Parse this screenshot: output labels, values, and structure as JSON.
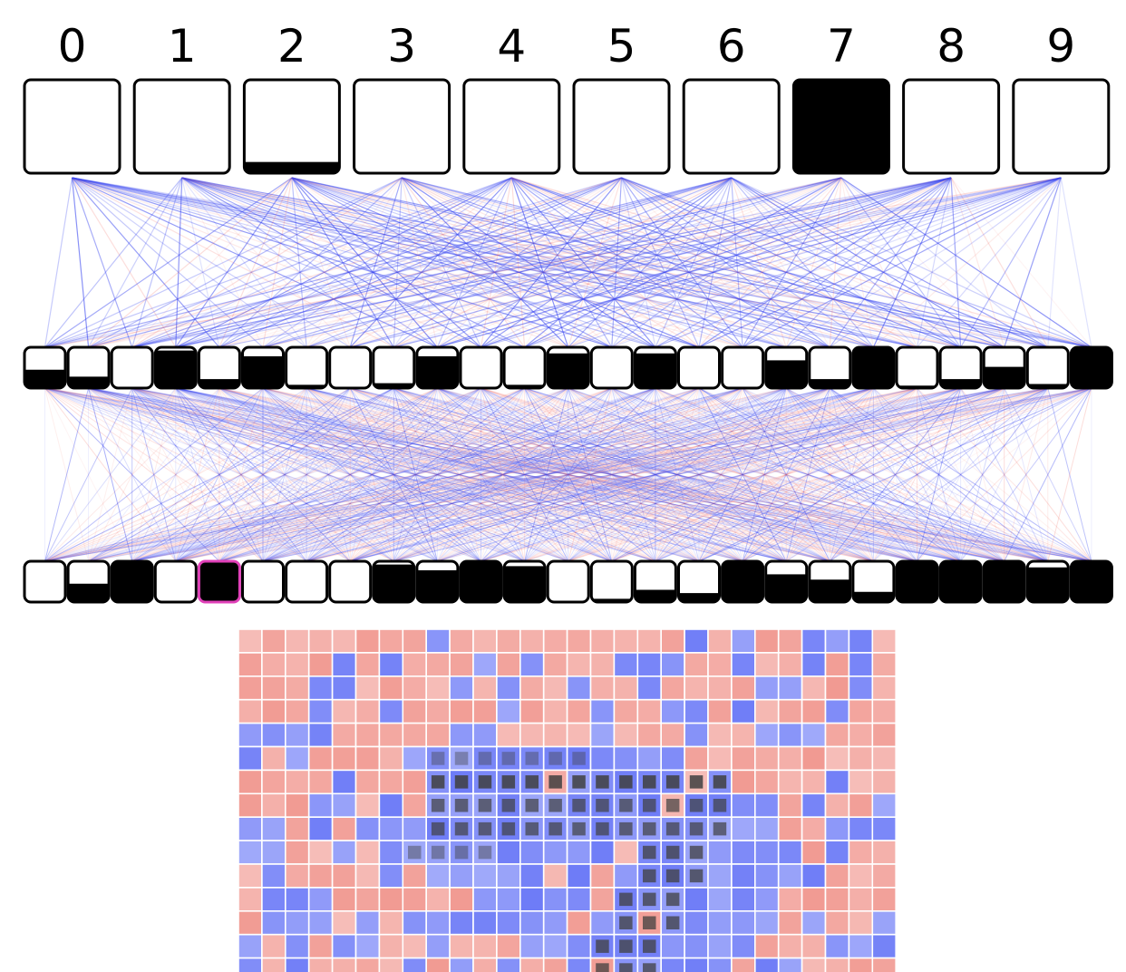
{
  "output_layer": {
    "labels": [
      "0",
      "1",
      "2",
      "3",
      "4",
      "5",
      "6",
      "7",
      "8",
      "9"
    ],
    "activations": [
      0.0,
      0.0,
      0.12,
      0.0,
      0.0,
      0.0,
      0.0,
      1.0,
      0.0,
      0.0
    ]
  },
  "hidden_layer_2": {
    "activations": [
      0.45,
      0.28,
      0.0,
      0.92,
      0.22,
      0.78,
      0.08,
      0.0,
      0.12,
      0.78,
      0.0,
      0.08,
      0.85,
      0.0,
      0.85,
      0.0,
      0.0,
      0.68,
      0.22,
      1.0,
      0.06,
      0.22,
      0.52,
      0.1,
      1.0
    ]
  },
  "hidden_layer_1": {
    "activations": [
      0.0,
      0.45,
      1.0,
      0.0,
      1.0,
      0.0,
      0.0,
      0.0,
      0.92,
      0.78,
      1.0,
      0.88,
      0.0,
      0.08,
      0.3,
      0.22,
      1.0,
      0.68,
      0.55,
      0.25,
      1.0,
      1.0,
      1.0,
      0.85,
      1.0
    ],
    "selected_index": 4
  },
  "colors": {
    "positive_weight": "#3b48f0",
    "negative_weight": "#f36a5e",
    "node_border": "#000000",
    "node_fill": "#000000",
    "selected_border": "#e040b8",
    "grid_blue": "#6e7cf7",
    "grid_red": "#f19a92"
  },
  "input_grid": {
    "columns": 28,
    "visible_rows": 15
  }
}
